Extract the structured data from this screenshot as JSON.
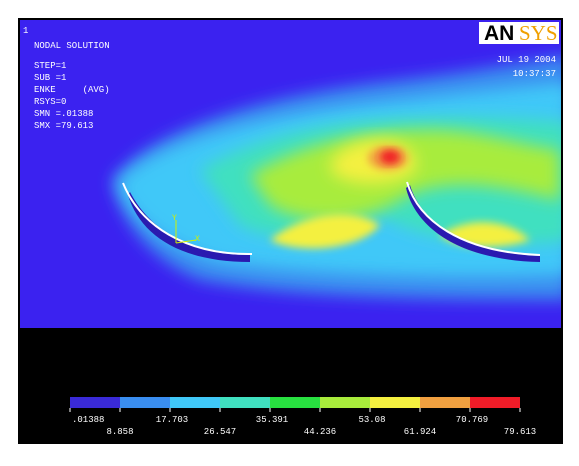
{
  "header": {
    "window_number": "1",
    "title": "NODAL SOLUTION",
    "info": [
      "STEP=1",
      "SUB =1",
      "ENKE     (AVG)",
      "RSYS=0",
      "SMN =.01388",
      "SMX =79.613"
    ],
    "logo_a": "AN",
    "logo_b": "SYS",
    "date": "JUL 19 2004",
    "time": "10:37:37"
  },
  "triad": {
    "y": "Y",
    "x": "X"
  },
  "legend": {
    "colors": [
      "#3a2ad8",
      "#3a8ef0",
      "#40c8f8",
      "#40e0c0",
      "#28e040",
      "#a8ec3c",
      "#f4f040",
      "#f0a040",
      "#f01c28"
    ],
    "labels": [
      ".01388",
      "8.858",
      "17.703",
      "26.547",
      "35.391",
      "44.236",
      "53.08",
      "61.924",
      "70.769",
      "79.613"
    ]
  }
}
